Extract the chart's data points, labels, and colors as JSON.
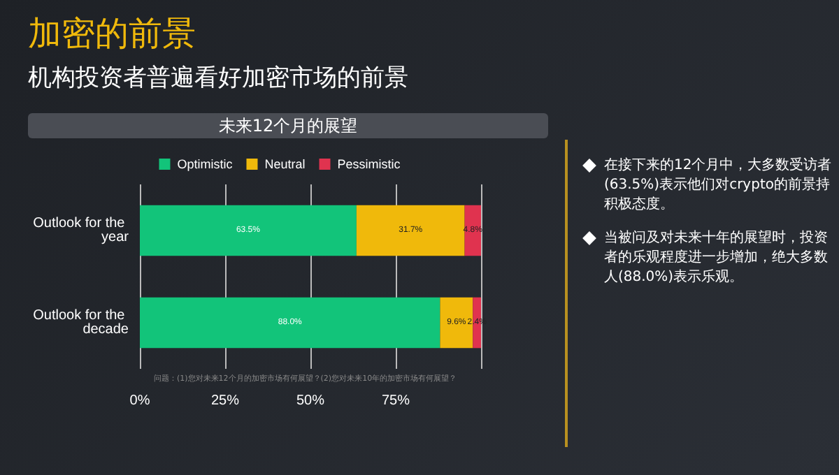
{
  "chart_data": {
    "type": "bar",
    "orientation": "horizontal",
    "stacked": true,
    "title": "加密的前景",
    "subtitle": "机构投资者普遍看好加密市场的前景",
    "xlabel": "未来12个月的展望",
    "categories": [
      "Outlook for the year",
      "Outlook for the decade"
    ],
    "series": [
      {
        "name": "Optimistic",
        "color": "#12c47a",
        "values": [
          63.5,
          88.0
        ],
        "value_labels": [
          "63.5%",
          "88.0%"
        ]
      },
      {
        "name": "Neutral",
        "color": "#f0b90b",
        "values": [
          31.7,
          9.6
        ],
        "value_labels": [
          "31.7%",
          "9.6%"
        ]
      },
      {
        "name": "Pessimistic",
        "color": "#e0334f",
        "values": [
          4.8,
          2.4
        ],
        "value_labels": [
          "4.8%",
          "2.4%"
        ]
      }
    ],
    "xlim": [
      0,
      100
    ],
    "xticks": [
      {
        "value": 0,
        "label": "0%"
      },
      {
        "value": 25,
        "label": "25%"
      },
      {
        "value": 50,
        "label": "50%"
      },
      {
        "value": 75,
        "label": "75%"
      },
      {
        "value": 100,
        "label": null
      }
    ],
    "grid": "x",
    "legend": "top",
    "annotations": [
      "在接下来的12个月中，大多数受访者(63.5%)表示他们对crypto的前景持积极态度。",
      "当被问及对未来十年的展望时，投资者的乐观程度进一步增加，绝大多数人(88.0%)表示乐观。",
      "问题：(1)您对未来12个月的加密市场有何展望？(2)您对未来10年的加密市场有何展望？"
    ]
  }
}
